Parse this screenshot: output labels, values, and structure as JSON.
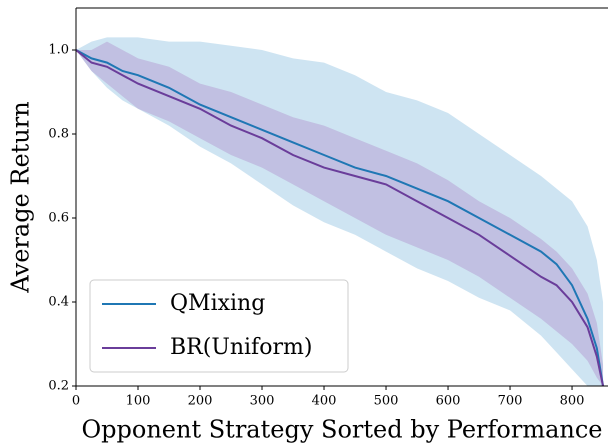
{
  "chart_data": {
    "type": "line",
    "xlabel": "Opponent Strategy Sorted by Performance",
    "ylabel": "Average Return",
    "x": [
      0,
      25,
      50,
      75,
      100,
      150,
      200,
      250,
      300,
      350,
      400,
      450,
      500,
      550,
      600,
      650,
      700,
      750,
      775,
      800,
      825,
      840,
      850
    ],
    "series": [
      {
        "name": "QMixing",
        "color": "#1f77b4",
        "band_color": "#9ecae6",
        "values": [
          1.0,
          0.98,
          0.97,
          0.95,
          0.94,
          0.91,
          0.87,
          0.84,
          0.81,
          0.78,
          0.75,
          0.72,
          0.7,
          0.67,
          0.64,
          0.6,
          0.56,
          0.52,
          0.49,
          0.44,
          0.36,
          0.29,
          0.2
        ],
        "upper": [
          1.0,
          1.02,
          1.03,
          1.03,
          1.03,
          1.02,
          1.02,
          1.01,
          1.0,
          0.98,
          0.97,
          0.94,
          0.9,
          0.88,
          0.85,
          0.8,
          0.75,
          0.7,
          0.67,
          0.64,
          0.58,
          0.5,
          0.4
        ],
        "lower": [
          1.0,
          0.95,
          0.91,
          0.88,
          0.86,
          0.82,
          0.77,
          0.73,
          0.68,
          0.63,
          0.59,
          0.56,
          0.52,
          0.48,
          0.45,
          0.41,
          0.38,
          0.32,
          0.28,
          0.24,
          0.2,
          0.2,
          0.2
        ]
      },
      {
        "name": "BR(Uniform)",
        "color": "#6a3d9a",
        "band_color": "#b39bd1",
        "values": [
          1.0,
          0.97,
          0.96,
          0.94,
          0.92,
          0.89,
          0.86,
          0.82,
          0.79,
          0.75,
          0.72,
          0.7,
          0.68,
          0.64,
          0.6,
          0.56,
          0.51,
          0.46,
          0.44,
          0.4,
          0.34,
          0.27,
          0.2
        ],
        "upper": [
          1.0,
          1.0,
          1.02,
          1.0,
          0.98,
          0.96,
          0.92,
          0.9,
          0.87,
          0.84,
          0.82,
          0.79,
          0.76,
          0.73,
          0.69,
          0.64,
          0.6,
          0.55,
          0.52,
          0.48,
          0.42,
          0.35,
          0.25
        ],
        "lower": [
          1.0,
          0.95,
          0.92,
          0.89,
          0.86,
          0.83,
          0.79,
          0.75,
          0.72,
          0.68,
          0.64,
          0.6,
          0.56,
          0.53,
          0.5,
          0.46,
          0.41,
          0.36,
          0.33,
          0.3,
          0.26,
          0.22,
          0.2
        ]
      }
    ],
    "xlim": [
      0,
      858
    ],
    "ylim": [
      0.2,
      1.1
    ],
    "xticks": [
      0,
      100,
      200,
      300,
      400,
      500,
      600,
      700,
      800
    ],
    "yticks": [
      0.2,
      0.4,
      0.6,
      0.8,
      {
        "value": 1,
        "label": "1.0"
      }
    ],
    "legend": "lower left"
  }
}
